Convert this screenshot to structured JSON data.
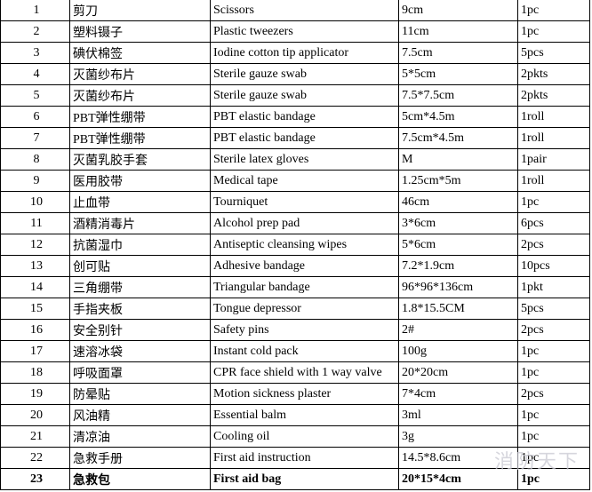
{
  "table": {
    "rows": [
      [
        "1",
        "剪刀",
        "Scissors",
        "9cm",
        "1pc"
      ],
      [
        "2",
        "塑料镊子",
        "Plastic tweezers",
        "11cm",
        "1pc"
      ],
      [
        "3",
        "碘伏棉签",
        "Iodine cotton tip applicator",
        "7.5cm",
        "5pcs"
      ],
      [
        "4",
        "灭菌纱布片",
        "Sterile gauze swab",
        "5*5cm",
        "2pkts"
      ],
      [
        "5",
        "灭菌纱布片",
        "Sterile gauze swab",
        "7.5*7.5cm",
        "2pkts"
      ],
      [
        "6",
        "PBT弹性绷带",
        "PBT elastic bandage",
        "5cm*4.5m",
        "1roll"
      ],
      [
        "7",
        "PBT弹性绷带",
        "PBT elastic bandage",
        "7.5cm*4.5m",
        "1roll"
      ],
      [
        "8",
        "灭菌乳胶手套",
        "Sterile latex gloves",
        "M",
        "1pair"
      ],
      [
        "9",
        "医用胶带",
        "Medical tape",
        "1.25cm*5m",
        "1roll"
      ],
      [
        "10",
        "止血带",
        "Tourniquet",
        "46cm",
        "1pc"
      ],
      [
        "11",
        "酒精消毒片",
        "Alcohol prep pad",
        "3*6cm",
        "6pcs"
      ],
      [
        "12",
        "抗菌湿巾",
        "Antiseptic cleansing wipes",
        "5*6cm",
        "2pcs"
      ],
      [
        "13",
        "创可贴",
        "Adhesive bandage",
        "7.2*1.9cm",
        "10pcs"
      ],
      [
        "14",
        "三角绷带",
        "Triangular bandage",
        "96*96*136cm",
        "1pkt"
      ],
      [
        "15",
        "手指夹板",
        "Tongue depressor",
        "1.8*15.5CM",
        "5pcs"
      ],
      [
        "16",
        "安全别针",
        "Safety pins",
        "2#",
        "2pcs"
      ],
      [
        "17",
        "速溶冰袋",
        "Instant cold pack",
        "100g",
        "1pc"
      ],
      [
        "18",
        "呼吸面罩",
        "CPR face shield with 1 way valve",
        "20*20cm",
        "1pc"
      ],
      [
        "19",
        "防晕贴",
        "Motion sickness plaster",
        "7*4cm",
        "2pcs"
      ],
      [
        "20",
        "风油精",
        "Essential balm",
        "3ml",
        "1pc"
      ],
      [
        "21",
        "清凉油",
        "Cooling oil",
        "3g",
        "1pc"
      ],
      [
        "22",
        "急救手册",
        "First aid instruction",
        "14.5*8.6cm",
        "1pc"
      ],
      [
        "23",
        "急救包",
        "First aid bag",
        "20*15*4cm",
        "1pc"
      ]
    ],
    "watermark": "消防天下"
  }
}
